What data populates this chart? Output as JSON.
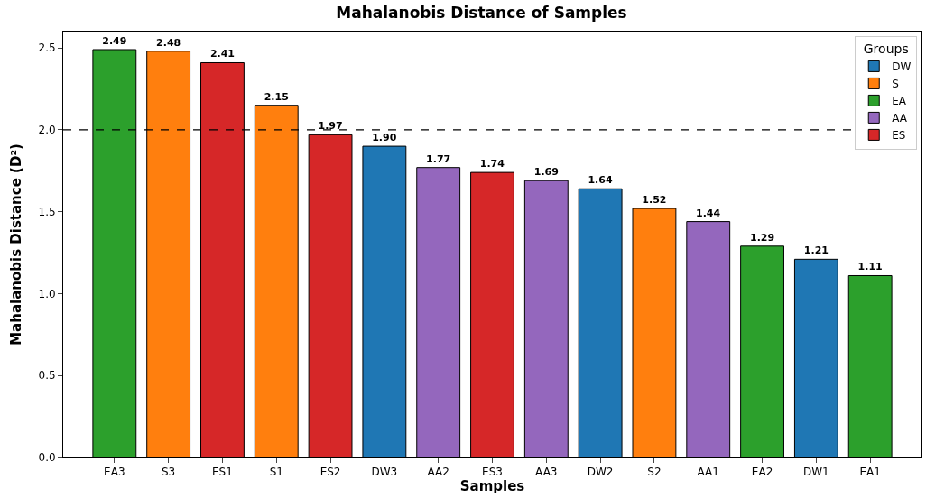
{
  "chart_data": {
    "type": "bar",
    "title": "Mahalanobis Distance of Samples",
    "xlabel": "Samples",
    "ylabel": "Mahalanobis Distance (D²)",
    "legend_title": "Groups",
    "categories": [
      "EA3",
      "S3",
      "ES1",
      "S1",
      "ES2",
      "DW3",
      "AA2",
      "ES3",
      "AA3",
      "DW2",
      "S2",
      "AA1",
      "EA2",
      "DW1",
      "EA1"
    ],
    "series": [
      {
        "name": "DW",
        "color": "#1f77b4",
        "values": [
          null,
          null,
          null,
          null,
          null,
          1.9,
          null,
          null,
          null,
          1.64,
          null,
          null,
          null,
          1.21,
          null
        ],
        "value_labels": [
          null,
          null,
          null,
          null,
          null,
          "1.90",
          null,
          null,
          null,
          "1.64",
          null,
          null,
          null,
          "1.21",
          null
        ]
      },
      {
        "name": "S",
        "color": "#ff7f0e",
        "values": [
          null,
          2.48,
          null,
          2.15,
          null,
          null,
          null,
          null,
          null,
          null,
          1.52,
          null,
          null,
          null,
          null
        ],
        "value_labels": [
          null,
          "2.48",
          null,
          "2.15",
          null,
          null,
          null,
          null,
          null,
          null,
          "1.52",
          null,
          null,
          null,
          null
        ]
      },
      {
        "name": "EA",
        "color": "#2ca02c",
        "values": [
          2.49,
          null,
          null,
          null,
          null,
          null,
          null,
          null,
          null,
          null,
          null,
          null,
          1.29,
          null,
          1.11
        ],
        "value_labels": [
          "2.49",
          null,
          null,
          null,
          null,
          null,
          null,
          null,
          null,
          null,
          null,
          null,
          "1.29",
          null,
          "1.11"
        ]
      },
      {
        "name": "AA",
        "color": "#9467bd",
        "values": [
          null,
          null,
          null,
          null,
          null,
          null,
          1.77,
          null,
          1.69,
          null,
          null,
          1.44,
          null,
          null,
          null
        ],
        "value_labels": [
          null,
          null,
          null,
          null,
          null,
          null,
          "1.77",
          null,
          "1.69",
          null,
          null,
          "1.44",
          null,
          null,
          null
        ]
      },
      {
        "name": "ES",
        "color": "#d62728",
        "values": [
          null,
          null,
          2.41,
          null,
          1.97,
          null,
          null,
          1.74,
          null,
          null,
          null,
          null,
          null,
          null,
          null
        ],
        "value_labels": [
          null,
          null,
          "2.41",
          null,
          "1.97",
          null,
          null,
          "1.74",
          null,
          null,
          null,
          null,
          null,
          null,
          null
        ]
      }
    ],
    "ylim": [
      0,
      2.6
    ],
    "yticks": [
      {
        "value": 0,
        "label": "0.0"
      },
      {
        "value": 0.5,
        "label": "0.5"
      },
      {
        "value": 1,
        "label": "1.0"
      },
      {
        "value": 1.5,
        "label": "1.5"
      },
      {
        "value": 2,
        "label": "2.0"
      },
      {
        "value": 2.5,
        "label": "2.5"
      }
    ],
    "ref_lines": [
      {
        "axis": "y",
        "value": 2.0,
        "color": "#000000",
        "line_style": "dashed"
      }
    ],
    "legend": "top right"
  }
}
